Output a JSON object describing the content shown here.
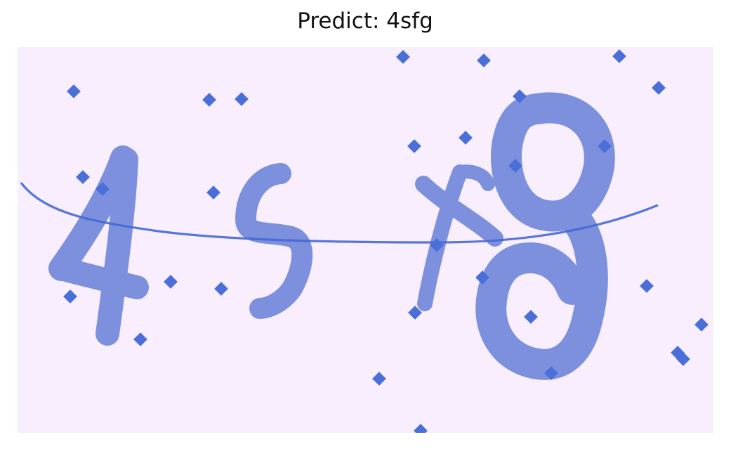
{
  "title": "Predict: 4sfg",
  "colors": {
    "background": "#ffffff",
    "captcha_background": "#f8eefd",
    "glyph": "#7c90de",
    "noise": "#4a6fd8",
    "curve": "#4468d6"
  },
  "captcha": {
    "icon": "captcha-image-icon"
  }
}
